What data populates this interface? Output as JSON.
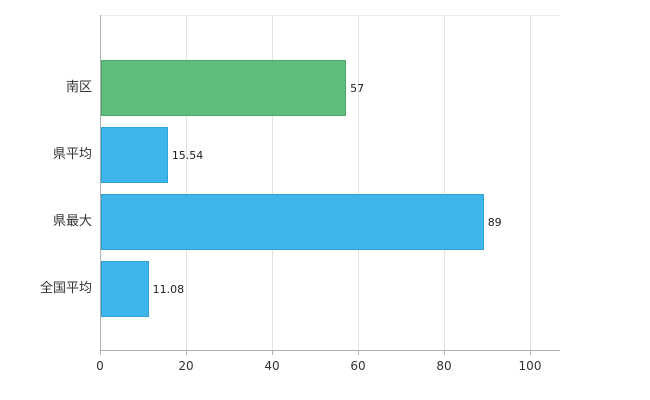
{
  "chart_data": {
    "type": "bar",
    "orientation": "horizontal",
    "title": "",
    "categories": [
      "南区",
      "県平均",
      "県最大",
      "全国平均"
    ],
    "values": [
      57,
      15.54,
      89,
      11.08
    ],
    "value_labels": [
      "57",
      "15.54",
      "89",
      "11.08"
    ],
    "bar_colors": [
      "#5fbe7d",
      "#3fb6ea",
      "#3fb6ea",
      "#3fb6ea"
    ],
    "bar_border_colors": [
      "#4ca968",
      "#2ea2d6",
      "#2ea2d6",
      "#2ea2d6"
    ],
    "xlim": [
      0,
      100
    ],
    "x_ticks": [
      "0",
      "20",
      "40",
      "60",
      "80",
      "100"
    ],
    "x_tick_values": [
      0,
      20,
      40,
      60,
      80,
      100
    ],
    "grid": "vertical-only",
    "legend": "none",
    "colors": {
      "axis": "#b0b0b0",
      "grid": "#e3e3e3",
      "text": "#333333",
      "background": "#ffffff"
    }
  }
}
